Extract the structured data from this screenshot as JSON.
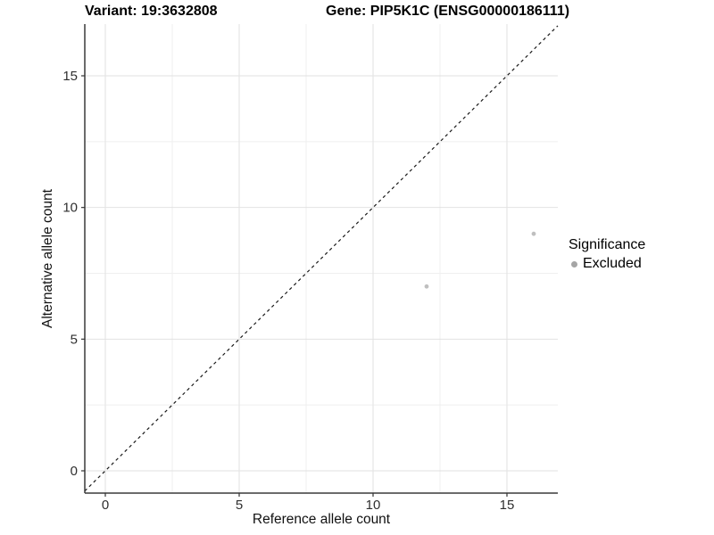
{
  "chart_data": {
    "type": "scatter",
    "title_left": "Variant: 19:3632808",
    "title_right": "Gene: PIP5K1C (ENSG00000186111)",
    "xlabel": "Reference allele count",
    "ylabel": "Alternative allele count",
    "x_ticks": [
      0,
      5,
      10,
      15
    ],
    "y_ticks": [
      0,
      5,
      10,
      15
    ],
    "x_minor_gridlines": [
      2.5,
      7.5,
      12.5
    ],
    "y_minor_gridlines": [
      2.5,
      7.5,
      12.5
    ],
    "xlim": [
      -0.77,
      16.9
    ],
    "ylim": [
      -0.85,
      17.0
    ],
    "grid": true,
    "identity_line": {
      "style": "dashed",
      "slope": 1,
      "intercept": 0,
      "from": -0.77,
      "to": 16.9,
      "color": "#1a1a1a"
    },
    "point_radius": 2.4,
    "series": [
      {
        "name": "Excluded",
        "color": "#bfbfbf",
        "points": [
          {
            "x": 12,
            "y": 7
          },
          {
            "x": 16,
            "y": 9
          }
        ]
      }
    ],
    "legend": {
      "title": "Significance",
      "position": "right",
      "items": [
        {
          "label": "Excluded",
          "color": "#a5a5a5"
        }
      ]
    }
  }
}
